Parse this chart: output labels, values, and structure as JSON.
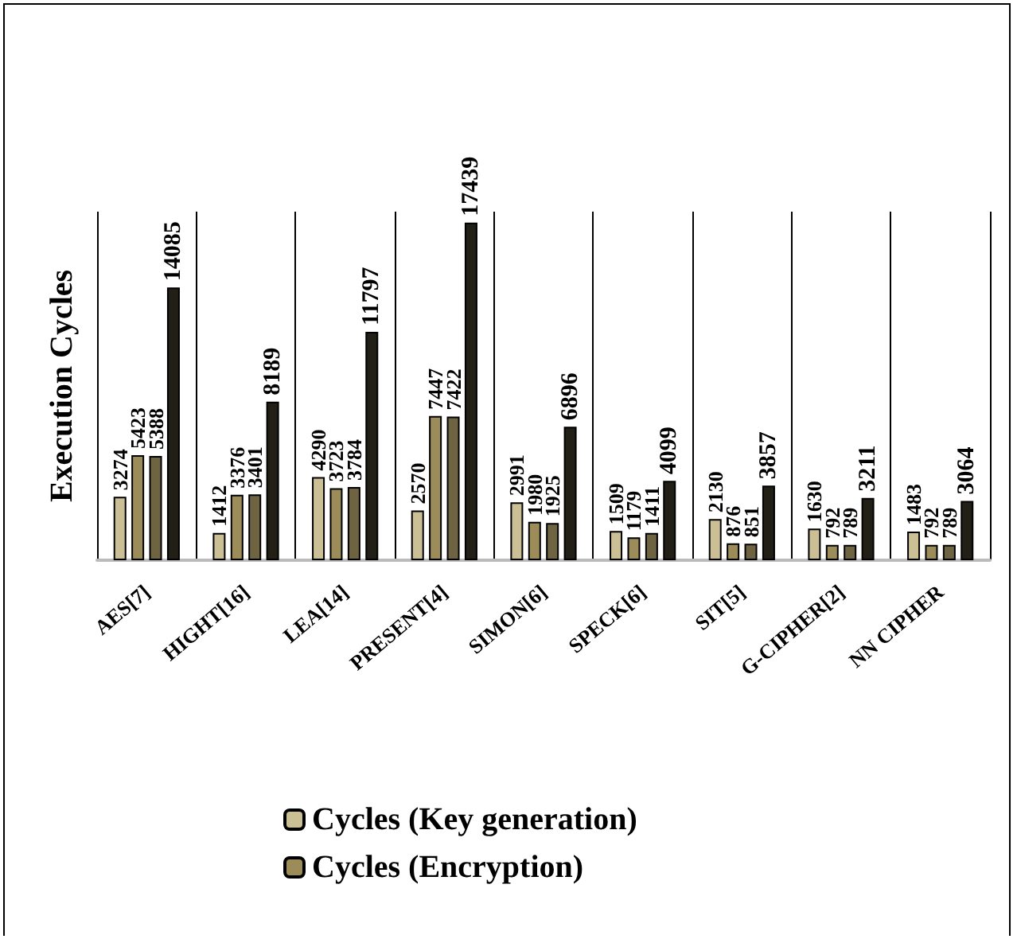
{
  "chart_data": {
    "type": "bar",
    "ylabel": "Execution Cycles",
    "categories": [
      "AES[7]",
      "HIGHT[16]",
      "LEA[14]",
      "PRESENT[4]",
      "SIMON[6]",
      "SPECK[6]",
      "SIT[5]",
      "G-CIPHER[2]",
      "NN CIPHER"
    ],
    "series": [
      {
        "name": "Cycles (Key generation)",
        "color": "#cbbf95",
        "values": [
          3274,
          1412,
          4290,
          2570,
          2991,
          1509,
          2130,
          1630,
          1483
        ]
      },
      {
        "name": "Cycles (Encryption)",
        "color": "#9b8c5a",
        "values": [
          5423,
          3376,
          3723,
          7447,
          1980,
          1179,
          876,
          792,
          792
        ]
      },
      {
        "color": "#6f6442",
        "values": [
          5388,
          3401,
          3784,
          7422,
          1925,
          1411,
          851,
          789,
          789
        ]
      },
      {
        "color": "#211f16",
        "values": [
          14085,
          8189,
          11797,
          17439,
          6896,
          4099,
          3857,
          3211,
          3064
        ]
      }
    ],
    "data_labels": true,
    "grid": "x",
    "legend": "bottom"
  }
}
